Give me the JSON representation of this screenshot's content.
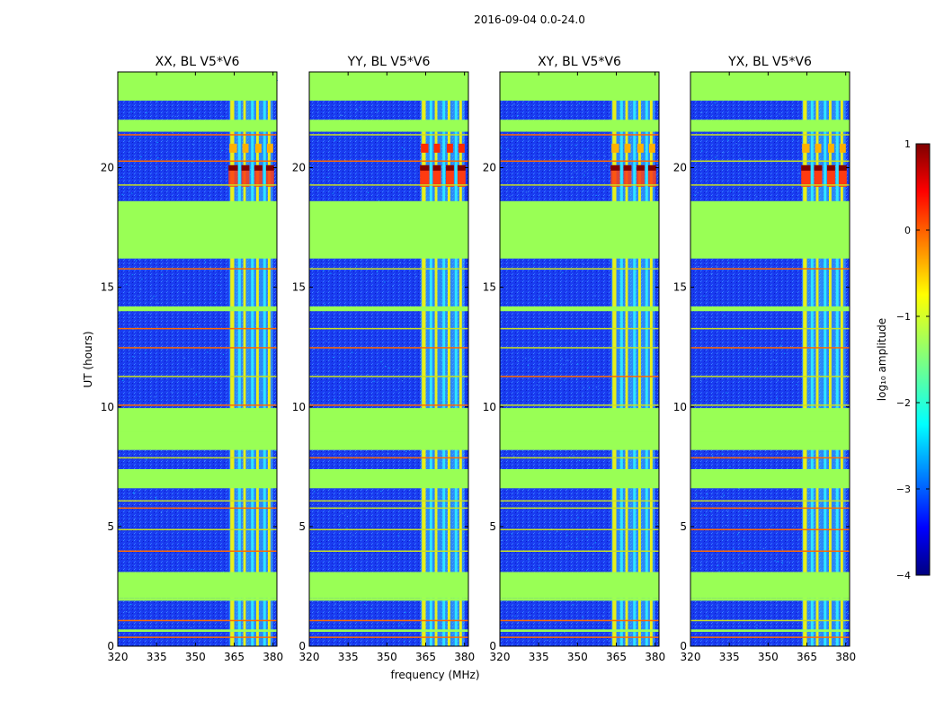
{
  "suptitle": "2016-09-04 0.0-24.0",
  "chart_data": {
    "type": "heatmap",
    "suptitle": "2016-09-04 0.0-24.0",
    "xlabel": "frequency (MHz)",
    "ylabel": "UT (hours)",
    "xlim": [
      320,
      381.5
    ],
    "ylim": [
      0,
      24
    ],
    "xticks": [
      320,
      335,
      350,
      365,
      380
    ],
    "yticks": [
      0,
      5,
      10,
      15,
      20
    ],
    "panels": [
      {
        "title": "XX, BL V5*V6"
      },
      {
        "title": "YY, BL V5*V6"
      },
      {
        "title": "XY, BL V5*V6"
      },
      {
        "title": "YX, BL V5*V6"
      }
    ],
    "colorbar": {
      "label": "log₁₀ amplitude",
      "range": [
        -4,
        1
      ],
      "ticks": [
        "1",
        "0",
        "−1",
        "−2",
        "−3",
        "−4"
      ]
    },
    "masked_bands_hours": [
      [
        22.8,
        24.0
      ],
      [
        16.2,
        18.6
      ],
      [
        8.2,
        9.0
      ],
      [
        6.6,
        7.4
      ],
      [
        2.0,
        3.1
      ],
      [
        1.9,
        2.0
      ],
      [
        21.5,
        22.0
      ]
    ],
    "flagged_frequency_columns_mhz": [
      [
        363.5,
        365.0
      ],
      [
        368.5,
        369.5
      ],
      [
        373.5,
        374.5
      ],
      [
        378.0,
        379.0
      ]
    ],
    "rfi_band_mhz": [
      363.0,
      380.0
    ],
    "strong_event_hours": [
      19.2,
      20.1
    ]
  }
}
